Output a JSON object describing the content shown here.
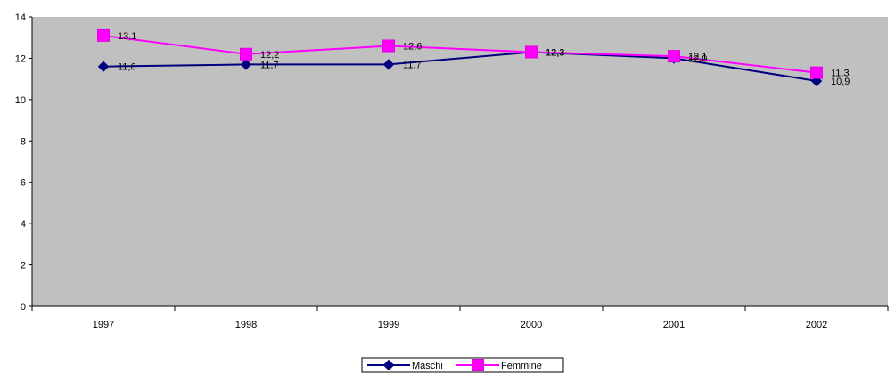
{
  "chart_data": {
    "type": "line",
    "title": "",
    "xlabel": "",
    "ylabel": "",
    "categories": [
      "1997",
      "1998",
      "1999",
      "2000",
      "2001",
      "2002"
    ],
    "ylim": [
      0,
      14
    ],
    "yticks": [
      "0",
      "2",
      "4",
      "6",
      "8",
      "10",
      "12",
      "14"
    ],
    "grid": false,
    "plot_background": "#c0c0c0",
    "legend_position": "bottom-center",
    "series": [
      {
        "name": "Maschi",
        "values": [
          11.6,
          11.7,
          11.7,
          12.3,
          12.0,
          10.9
        ],
        "labels": [
          "11,6",
          "11,7",
          "11,7",
          "12,3",
          "12,0",
          "10,9"
        ],
        "color": "#000080",
        "marker": "diamond"
      },
      {
        "name": "Femmine",
        "values": [
          13.1,
          12.2,
          12.6,
          12.3,
          12.1,
          11.3
        ],
        "labels": [
          "13,1",
          "12,2",
          "12,6",
          "12,3",
          "12,1",
          "11,3"
        ],
        "color": "#ff00ff",
        "marker": "square"
      }
    ]
  }
}
